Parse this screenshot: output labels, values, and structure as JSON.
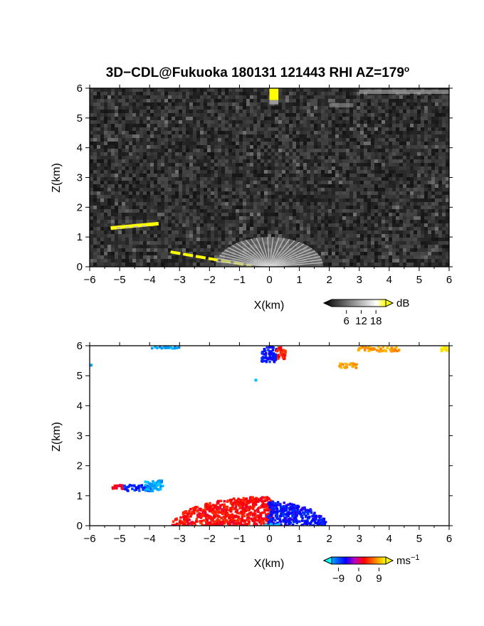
{
  "title": "3D−CDL@Fukuoka 180131 121443 RHI AZ=179",
  "title_superscript": "o",
  "chart_data": [
    {
      "type": "heatmap",
      "name": "reflectivity-panel",
      "xlabel": "X(km)",
      "ylabel": "Z(km)",
      "xlim": [
        -6,
        6
      ],
      "ylim": [
        0,
        6
      ],
      "xticks": [
        "−6",
        "−5",
        "−4",
        "−3",
        "−2",
        "−1",
        "0",
        "1",
        "2",
        "3",
        "4",
        "5",
        "6"
      ],
      "yticks": [
        "0",
        "1",
        "2",
        "3",
        "4",
        "5",
        "6"
      ],
      "background": "noise",
      "colorbar": {
        "unit": "dB",
        "ticks": [
          "6",
          "12",
          "18"
        ],
        "range": [
          0,
          22
        ],
        "colors": [
          "#000000",
          "#ffffff",
          "#ffff00"
        ]
      },
      "features": [
        {
          "label": "elevated layer",
          "x": [
            -5.3,
            -3.7
          ],
          "z": [
            1.3,
            1.45
          ],
          "value": 22
        },
        {
          "label": "sloping ground echo",
          "x": [
            -3.3,
            -0.6
          ],
          "z": [
            0.5,
            0.03
          ],
          "value": 22
        },
        {
          "label": "near-range fan",
          "x": [
            -1.4,
            2.0
          ],
          "z": [
            0.0,
            1.0
          ],
          "value": 12
        },
        {
          "label": "top echo",
          "x": [
            0.0,
            0.3
          ],
          "z": [
            5.6,
            6.0
          ],
          "value": 22
        }
      ]
    },
    {
      "type": "heatmap",
      "name": "velocity-panel",
      "xlabel": "X(km)",
      "ylabel": "Z(km)",
      "xlim": [
        -6,
        6
      ],
      "ylim": [
        0,
        6
      ],
      "xticks": [
        "−6",
        "−5",
        "−4",
        "−3",
        "−2",
        "−1",
        "0",
        "1",
        "2",
        "3",
        "4",
        "5",
        "6"
      ],
      "yticks": [
        "0",
        "1",
        "2",
        "3",
        "4",
        "5",
        "6"
      ],
      "background": "white",
      "colorbar": {
        "unit": "ms",
        "unit_superscript": "−1",
        "ticks": [
          "−9",
          "0",
          "9"
        ],
        "range": [
          -12,
          12
        ],
        "colors": [
          "#00ffff",
          "#0000ff",
          "#ff0000",
          "#ffff00"
        ]
      },
      "features": [
        {
          "label": "elevated layer red",
          "x": [
            -5.3,
            -4.9
          ],
          "z": [
            1.25,
            1.4
          ],
          "value": 3
        },
        {
          "label": "elevated layer blue",
          "x": [
            -4.9,
            -3.9
          ],
          "z": [
            1.2,
            1.4
          ],
          "value": -5
        },
        {
          "label": "elevated layer light blue",
          "x": [
            -4.2,
            -3.6
          ],
          "z": [
            1.2,
            1.55
          ],
          "value": -9
        },
        {
          "label": "boundary layer receding",
          "x": [
            -3.3,
            0.1
          ],
          "z": [
            0.0,
            1.0
          ],
          "value": 4
        },
        {
          "label": "boundary layer approaching",
          "x": [
            -0.1,
            1.9
          ],
          "z": [
            0.0,
            0.85
          ],
          "value": -4
        },
        {
          "label": "near-ground cyan",
          "x": [
            -0.2,
            0.3
          ],
          "z": [
            0.0,
            0.1
          ],
          "value": -10
        },
        {
          "label": "top blue",
          "x": [
            -0.3,
            0.2
          ],
          "z": [
            5.5,
            6.0
          ],
          "value": -4
        },
        {
          "label": "top red",
          "x": [
            0.2,
            0.5
          ],
          "z": [
            5.6,
            6.0
          ],
          "value": 4
        },
        {
          "label": "upper right orange",
          "x": [
            2.9,
            4.3
          ],
          "z": [
            5.85,
            6.0
          ],
          "value": 9
        },
        {
          "label": "upper right orange lower",
          "x": [
            2.3,
            2.9
          ],
          "z": [
            5.3,
            5.45
          ],
          "value": 9
        },
        {
          "label": "upper right yellow",
          "x": [
            5.7,
            6.0
          ],
          "z": [
            5.85,
            6.0
          ],
          "value": 11
        },
        {
          "label": "top left light blue",
          "x": [
            -4.0,
            -3.0
          ],
          "z": [
            5.95,
            6.0
          ],
          "value": -9
        }
      ]
    }
  ]
}
